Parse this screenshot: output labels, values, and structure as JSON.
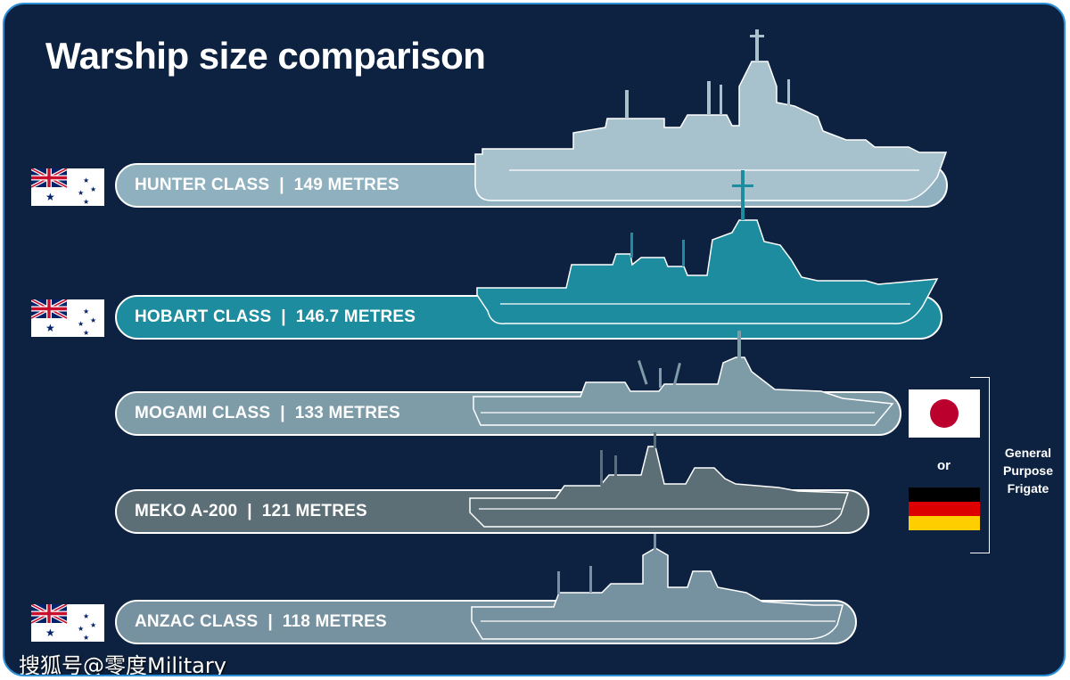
{
  "title": "Warship size comparison",
  "ships": [
    {
      "label": "HUNTER CLASS  |  149 METRES",
      "length_m": 149,
      "color": "#8fb0bf",
      "flag": "australia"
    },
    {
      "label": "HOBART CLASS  |  146.7 METRES",
      "length_m": 146.7,
      "color": "#1c8c9e",
      "flag": "australia"
    },
    {
      "label": "MOGAMI CLASS  |  133 METRES",
      "length_m": 133,
      "color": "#7e9ba8",
      "flag": "japan"
    },
    {
      "label": "MEKO A-200  |  121 METRES",
      "length_m": 121,
      "color": "#5d6f76",
      "flag": "germany"
    },
    {
      "label": "ANZAC CLASS  |  118 METRES",
      "length_m": 118,
      "color": "#76919f",
      "flag": "australia"
    }
  ],
  "bracket": {
    "label": "General Purpose Frigate",
    "or": "or"
  },
  "watermark": "搜狐号@零度Military",
  "colors": {
    "background": "#0d2240",
    "border": "#2a90d8",
    "flag_blue": "#012169",
    "flag_red": "#c8102e",
    "japan_red": "#bc002d"
  }
}
